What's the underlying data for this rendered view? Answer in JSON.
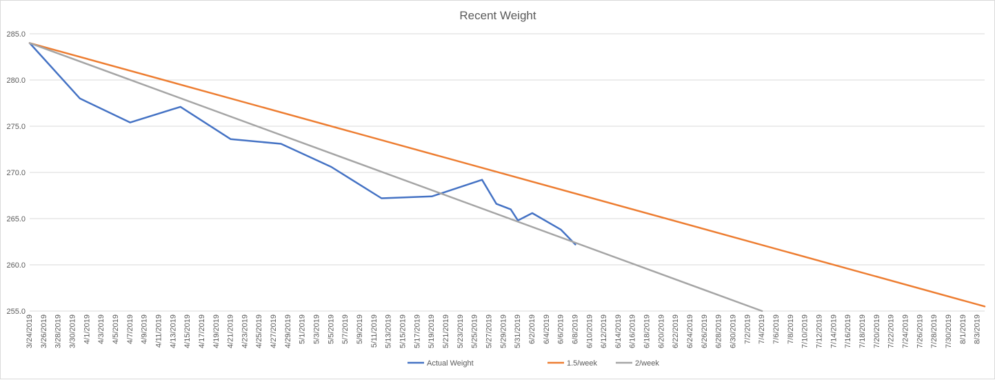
{
  "chart_data": {
    "type": "line",
    "title": "Recent Weight",
    "xlabel": "",
    "ylabel": "",
    "ylim": [
      255,
      285
    ],
    "yticks": [
      "255.0",
      "260.0",
      "265.0",
      "270.0",
      "275.0",
      "280.0",
      "285.0"
    ],
    "xlim": [
      "2019-03-24",
      "2019-08-04"
    ],
    "x_tick_labels": [
      "3/24/2019",
      "3/26/2019",
      "3/28/2019",
      "3/30/2019",
      "4/1/2019",
      "4/3/2019",
      "4/5/2019",
      "4/7/2019",
      "4/9/2019",
      "4/11/2019",
      "4/13/2019",
      "4/15/2019",
      "4/17/2019",
      "4/19/2019",
      "4/21/2019",
      "4/23/2019",
      "4/25/2019",
      "4/27/2019",
      "4/29/2019",
      "5/1/2019",
      "5/3/2019",
      "5/5/2019",
      "5/7/2019",
      "5/9/2019",
      "5/11/2019",
      "5/13/2019",
      "5/15/2019",
      "5/17/2019",
      "5/19/2019",
      "5/21/2019",
      "5/23/2019",
      "5/25/2019",
      "5/27/2019",
      "5/29/2019",
      "5/31/2019",
      "6/2/2019",
      "6/4/2019",
      "6/6/2019",
      "6/8/2019",
      "6/10/2019",
      "6/12/2019",
      "6/14/2019",
      "6/16/2019",
      "6/18/2019",
      "6/20/2019",
      "6/22/2019",
      "6/24/2019",
      "6/26/2019",
      "6/28/2019",
      "6/30/2019",
      "7/2/2019",
      "7/4/2019",
      "7/6/2019",
      "7/8/2019",
      "7/10/2019",
      "7/12/2019",
      "7/14/2019",
      "7/16/2019",
      "7/18/2019",
      "7/20/2019",
      "7/22/2019",
      "7/24/2019",
      "7/26/2019",
      "7/28/2019",
      "7/30/2019",
      "8/1/2019",
      "8/3/2019"
    ],
    "grid": true,
    "legend_position": "bottom",
    "series": [
      {
        "name": "Actual Weight",
        "color": "#4472c4",
        "points": [
          [
            "2019-03-24",
            284.0
          ],
          [
            "2019-03-31",
            278.0
          ],
          [
            "2019-04-07",
            275.4
          ],
          [
            "2019-04-14",
            277.1
          ],
          [
            "2019-04-21",
            273.6
          ],
          [
            "2019-04-28",
            273.1
          ],
          [
            "2019-05-05",
            270.6
          ],
          [
            "2019-05-12",
            267.2
          ],
          [
            "2019-05-19",
            267.4
          ],
          [
            "2019-05-26",
            269.2
          ],
          [
            "2019-05-28",
            266.6
          ],
          [
            "2019-05-30",
            266.0
          ],
          [
            "2019-05-31",
            264.8
          ],
          [
            "2019-06-02",
            265.6
          ],
          [
            "2019-06-06",
            263.8
          ],
          [
            "2019-06-08",
            262.2
          ]
        ]
      },
      {
        "name": "1.5/week",
        "color": "#ed7d31",
        "points": [
          [
            "2019-03-24",
            284.0
          ],
          [
            "2019-08-04",
            255.5
          ]
        ]
      },
      {
        "name": "2/week",
        "color": "#a5a5a5",
        "points": [
          [
            "2019-03-24",
            284.0
          ],
          [
            "2019-07-04",
            255.0
          ]
        ]
      }
    ]
  }
}
